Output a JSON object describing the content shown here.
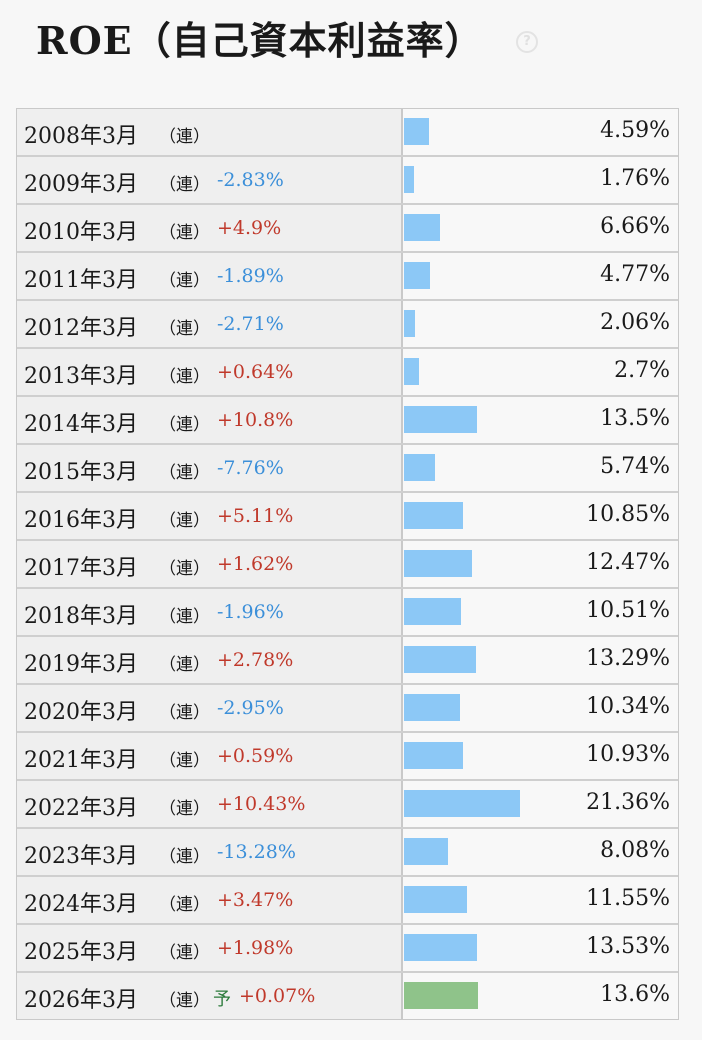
{
  "title": "ROE（自己資本利益率）",
  "help_icon": "question-circle-icon",
  "colors": {
    "bar": "#8cc8f6",
    "forecast_bar": "#8fc38a",
    "up": "#c0392b",
    "down": "#3b8fd9"
  },
  "chart_data": {
    "type": "bar",
    "orientation": "horizontal",
    "title": "ROE（自己資本利益率）",
    "unit": "%",
    "categories": [
      "2008年3月",
      "2009年3月",
      "2010年3月",
      "2011年3月",
      "2012年3月",
      "2013年3月",
      "2014年3月",
      "2015年3月",
      "2016年3月",
      "2017年3月",
      "2018年3月",
      "2019年3月",
      "2020年3月",
      "2021年3月",
      "2022年3月",
      "2023年3月",
      "2024年3月",
      "2025年3月",
      "2026年3月"
    ],
    "values": [
      4.59,
      1.76,
      6.66,
      4.77,
      2.06,
      2.7,
      13.5,
      5.74,
      10.85,
      12.47,
      10.51,
      13.29,
      10.34,
      10.93,
      21.36,
      8.08,
      11.55,
      13.53,
      13.6
    ],
    "rows": [
      {
        "period": "2008年3月",
        "type": "（連）",
        "forecast": "",
        "change": "",
        "dir": "",
        "value": 4.59,
        "value_text": "4.59%"
      },
      {
        "period": "2009年3月",
        "type": "（連）",
        "forecast": "",
        "change": "-2.83%",
        "dir": "down",
        "value": 1.76,
        "value_text": "1.76%"
      },
      {
        "period": "2010年3月",
        "type": "（連）",
        "forecast": "",
        "change": "+4.9%",
        "dir": "up",
        "value": 6.66,
        "value_text": "6.66%"
      },
      {
        "period": "2011年3月",
        "type": "（連）",
        "forecast": "",
        "change": "-1.89%",
        "dir": "down",
        "value": 4.77,
        "value_text": "4.77%"
      },
      {
        "period": "2012年3月",
        "type": "（連）",
        "forecast": "",
        "change": "-2.71%",
        "dir": "down",
        "value": 2.06,
        "value_text": "2.06%"
      },
      {
        "period": "2013年3月",
        "type": "（連）",
        "forecast": "",
        "change": "+0.64%",
        "dir": "up",
        "value": 2.7,
        "value_text": "2.7%"
      },
      {
        "period": "2014年3月",
        "type": "（連）",
        "forecast": "",
        "change": "+10.8%",
        "dir": "up",
        "value": 13.5,
        "value_text": "13.5%"
      },
      {
        "period": "2015年3月",
        "type": "（連）",
        "forecast": "",
        "change": "-7.76%",
        "dir": "down",
        "value": 5.74,
        "value_text": "5.74%"
      },
      {
        "period": "2016年3月",
        "type": "（連）",
        "forecast": "",
        "change": "+5.11%",
        "dir": "up",
        "value": 10.85,
        "value_text": "10.85%"
      },
      {
        "period": "2017年3月",
        "type": "（連）",
        "forecast": "",
        "change": "+1.62%",
        "dir": "up",
        "value": 12.47,
        "value_text": "12.47%"
      },
      {
        "period": "2018年3月",
        "type": "（連）",
        "forecast": "",
        "change": "-1.96%",
        "dir": "down",
        "value": 10.51,
        "value_text": "10.51%"
      },
      {
        "period": "2019年3月",
        "type": "（連）",
        "forecast": "",
        "change": "+2.78%",
        "dir": "up",
        "value": 13.29,
        "value_text": "13.29%"
      },
      {
        "period": "2020年3月",
        "type": "（連）",
        "forecast": "",
        "change": "-2.95%",
        "dir": "down",
        "value": 10.34,
        "value_text": "10.34%"
      },
      {
        "period": "2021年3月",
        "type": "（連）",
        "forecast": "",
        "change": "+0.59%",
        "dir": "up",
        "value": 10.93,
        "value_text": "10.93%"
      },
      {
        "period": "2022年3月",
        "type": "（連）",
        "forecast": "",
        "change": "+10.43%",
        "dir": "up",
        "value": 21.36,
        "value_text": "21.36%"
      },
      {
        "period": "2023年3月",
        "type": "（連）",
        "forecast": "",
        "change": "-13.28%",
        "dir": "down",
        "value": 8.08,
        "value_text": "8.08%"
      },
      {
        "period": "2024年3月",
        "type": "（連）",
        "forecast": "",
        "change": "+3.47%",
        "dir": "up",
        "value": 11.55,
        "value_text": "11.55%"
      },
      {
        "period": "2025年3月",
        "type": "（連）",
        "forecast": "",
        "change": "+1.98%",
        "dir": "up",
        "value": 13.53,
        "value_text": "13.53%"
      },
      {
        "period": "2026年3月",
        "type": "（連）",
        "forecast": "予",
        "change": "+0.07%",
        "dir": "up",
        "value": 13.6,
        "value_text": "13.6%"
      }
    ]
  }
}
